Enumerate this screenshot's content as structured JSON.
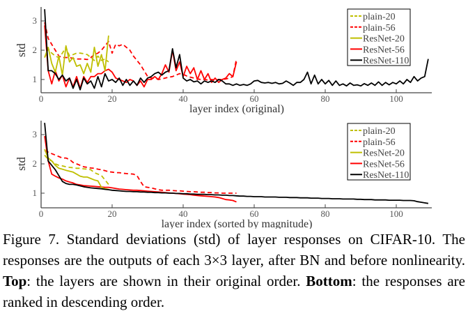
{
  "colors": {
    "plain-20": "#bfbf00",
    "plain-56": "#ff0000",
    "ResNet-20": "#bfbf00",
    "ResNet-56": "#ff0000",
    "ResNet-110": "#000000"
  },
  "chart_data": [
    {
      "type": "line",
      "xlabel": "layer index (original)",
      "ylabel": "std",
      "xlim": [
        0,
        110
      ],
      "ylim": [
        0.55,
        3.5
      ],
      "xticks": [
        "0",
        "20",
        "40",
        "60",
        "80",
        "100"
      ],
      "yticks": [
        "1",
        "2",
        "3"
      ],
      "legend": "top-right",
      "grid": false,
      "series": [
        {
          "name": "plain-20",
          "dashed": true,
          "values": [
            1.75,
            2.05,
            1.9,
            1.8,
            1.75,
            1.9,
            2.1,
            1.8,
            1.85,
            1.9,
            1.9,
            1.88,
            1.85,
            1.75,
            1.65,
            1.8,
            1.65,
            1.7,
            1.6
          ]
        },
        {
          "name": "plain-56",
          "dashed": true,
          "values": [
            2.95,
            2.4,
            2.2,
            2.0,
            1.8,
            1.75,
            1.75,
            1.75,
            1.72,
            1.7,
            1.7,
            1.7,
            1.68,
            1.75,
            1.85,
            1.9,
            2.0,
            2.15,
            2.3,
            1.9,
            2.2,
            2.15,
            2.2,
            2.1,
            2.0,
            1.8,
            1.65,
            1.5,
            1.3,
            1.1,
            1.05,
            1.05,
            1.0,
            1.02,
            1.05,
            1.08,
            1.1,
            1.15,
            1.2,
            1.18,
            1.12,
            1.08,
            1.05,
            1.02,
            1.0,
            1.0,
            0.98,
            1.0,
            0.98,
            1.0,
            1.0,
            1.02,
            1.05,
            1.1,
            1.7
          ]
        },
        {
          "name": "ResNet-20",
          "dashed": false,
          "values": [
            1.75,
            2.1,
            1.55,
            1.25,
            1.8,
            1.15,
            2.15,
            1.6,
            1.75,
            1.45,
            1.5,
            1.2,
            1.55,
            1.25,
            2.1,
            1.45,
            1.85,
            1.3,
            2.5
          ]
        },
        {
          "name": "ResNet-56",
          "dashed": false,
          "values": [
            2.85,
            1.3,
            0.85,
            1.3,
            0.95,
            1.15,
            0.75,
            1.05,
            0.75,
            1.1,
            0.7,
            1.1,
            0.9,
            1.1,
            1.1,
            1.2,
            1.2,
            1.3,
            1.35,
            1.25,
            1.05,
            1.0,
            0.95,
            0.9,
            1.0,
            0.95,
            0.8,
            0.95,
            0.75,
            1.0,
            1.0,
            1.1,
            1.0,
            1.2,
            1.5,
            1.25,
            2.0,
            1.3,
            1.6,
            1.1,
            1.45,
            1.2,
            1.4,
            1.0,
            1.3,
            1.0,
            1.2,
            0.9,
            1.05,
            0.9,
            1.0,
            1.05,
            1.2,
            1.1,
            1.6
          ]
        },
        {
          "name": "ResNet-110",
          "dashed": false,
          "values": [
            3.4,
            1.3,
            1.3,
            1.2,
            1.0,
            1.15,
            0.95,
            1.05,
            0.7,
            1.0,
            0.65,
            1.05,
            0.85,
            0.95,
            0.7,
            1.1,
            0.75,
            1.2,
            0.95,
            1.0,
            0.9,
            1.05,
            0.8,
            1.0,
            0.8,
            0.95,
            0.8,
            1.05,
            0.9,
            1.05,
            1.1,
            1.2,
            1.25,
            1.15,
            1.25,
            1.3,
            2.05,
            1.4,
            1.85,
            1.05,
            0.95,
            1.0,
            0.92,
            0.95,
            0.85,
            0.95,
            0.9,
            0.95,
            0.9,
            1.0,
            0.95,
            0.85,
            0.85,
            0.8,
            0.85,
            0.8,
            0.83,
            0.8,
            0.85,
            0.95,
            0.97,
            0.9,
            0.88,
            0.9,
            0.87,
            0.9,
            0.85,
            0.87,
            0.95,
            0.88,
            0.8,
            0.9,
            0.9,
            1.0,
            1.25,
            0.85,
            1.15,
            0.85,
            1.0,
            0.85,
            0.97,
            0.8,
            0.95,
            0.8,
            0.85,
            0.78,
            0.88,
            0.8,
            0.82,
            0.78,
            0.86,
            0.8,
            0.88,
            0.8,
            0.92,
            0.8,
            0.9,
            0.82,
            0.9,
            0.85,
            0.95,
            0.85,
            1.0,
            0.9,
            1.1,
            0.95,
            1.05,
            1.1,
            1.7
          ]
        }
      ]
    },
    {
      "type": "line",
      "xlabel": "layer index (sorted by magnitude)",
      "ylabel": "std",
      "xlim": [
        0,
        110
      ],
      "ylim": [
        0.55,
        3.5
      ],
      "xticks": [
        "0",
        "20",
        "40",
        "60",
        "80",
        "100"
      ],
      "yticks": [
        "1",
        "2",
        "3"
      ],
      "legend": "top-right",
      "grid": false,
      "series": [
        {
          "name": "plain-20",
          "dashed": true,
          "values": [
            2.3,
            2.15,
            2.1,
            2.0,
            1.95,
            1.93,
            1.9,
            1.88,
            1.87,
            1.85,
            1.85,
            1.83,
            1.82,
            1.8,
            1.7,
            1.65,
            1.6,
            1.45,
            1.3
          ]
        },
        {
          "name": "plain-56",
          "dashed": true,
          "values": [
            2.45,
            2.4,
            2.35,
            2.3,
            2.25,
            2.2,
            2.2,
            2.15,
            2.05,
            2.0,
            1.95,
            1.9,
            1.88,
            1.86,
            1.85,
            1.82,
            1.8,
            1.77,
            1.73,
            1.72,
            1.7,
            1.7,
            1.68,
            1.67,
            1.66,
            1.65,
            1.6,
            1.4,
            1.22,
            1.2,
            1.18,
            1.15,
            1.12,
            1.1,
            1.1,
            1.1,
            1.09,
            1.08,
            1.08,
            1.07,
            1.06,
            1.05,
            1.05,
            1.04,
            1.03,
            1.03,
            1.02,
            1.02,
            1.01,
            1.01,
            1.0,
            1.0,
            1.0,
            1.0,
            1.0
          ]
        },
        {
          "name": "ResNet-20",
          "dashed": false,
          "values": [
            2.5,
            2.2,
            2.1,
            1.95,
            1.85,
            1.82,
            1.78,
            1.75,
            1.72,
            1.65,
            1.58,
            1.55,
            1.55,
            1.5,
            1.45,
            1.42,
            1.2,
            1.15,
            1.13
          ]
        },
        {
          "name": "ResNet-56",
          "dashed": false,
          "values": [
            2.95,
            2.1,
            1.65,
            1.58,
            1.52,
            1.48,
            1.42,
            1.38,
            1.35,
            1.3,
            1.28,
            1.26,
            1.25,
            1.24,
            1.23,
            1.22,
            1.21,
            1.2,
            1.2,
            1.18,
            1.16,
            1.14,
            1.13,
            1.12,
            1.11,
            1.1,
            1.1,
            1.09,
            1.08,
            1.07,
            1.06,
            1.05,
            1.04,
            1.03,
            1.02,
            1.01,
            1.0,
            0.99,
            0.98,
            0.97,
            0.96,
            0.95,
            0.93,
            0.92,
            0.91,
            0.9,
            0.89,
            0.88,
            0.87,
            0.85,
            0.82,
            0.78,
            0.77,
            0.75,
            0.7
          ]
        },
        {
          "name": "ResNet-110",
          "dashed": false,
          "values": [
            3.4,
            2.1,
            1.95,
            1.8,
            1.6,
            1.4,
            1.33,
            1.3,
            1.3,
            1.28,
            1.25,
            1.22,
            1.2,
            1.18,
            1.17,
            1.16,
            1.15,
            1.13,
            1.12,
            1.1,
            1.09,
            1.08,
            1.07,
            1.06,
            1.06,
            1.05,
            1.05,
            1.04,
            1.04,
            1.03,
            1.03,
            1.02,
            1.02,
            1.01,
            1.01,
            1.0,
            1.0,
            0.99,
            0.99,
            0.98,
            0.98,
            0.97,
            0.97,
            0.96,
            0.96,
            0.96,
            0.95,
            0.95,
            0.94,
            0.94,
            0.93,
            0.93,
            0.92,
            0.92,
            0.91,
            0.9,
            0.9,
            0.89,
            0.89,
            0.88,
            0.88,
            0.88,
            0.87,
            0.87,
            0.87,
            0.87,
            0.86,
            0.86,
            0.86,
            0.85,
            0.85,
            0.85,
            0.84,
            0.84,
            0.84,
            0.83,
            0.83,
            0.83,
            0.82,
            0.82,
            0.82,
            0.81,
            0.81,
            0.81,
            0.8,
            0.8,
            0.8,
            0.8,
            0.79,
            0.79,
            0.78,
            0.78,
            0.78,
            0.77,
            0.77,
            0.77,
            0.77,
            0.76,
            0.76,
            0.76,
            0.76,
            0.75,
            0.75,
            0.75,
            0.74,
            0.71,
            0.69,
            0.67,
            0.65
          ]
        }
      ]
    }
  ],
  "caption": {
    "part1": "Figure 7. Standard deviations (std) of layer responses on CIFAR-10. The responses are the outputs of each 3×3 layer, after BN and before nonlinearity. ",
    "top_label": "Top",
    "part2": ": the layers are shown in their original order. ",
    "bottom_label": "Bottom",
    "part3": ": the responses are ranked in descending order."
  }
}
